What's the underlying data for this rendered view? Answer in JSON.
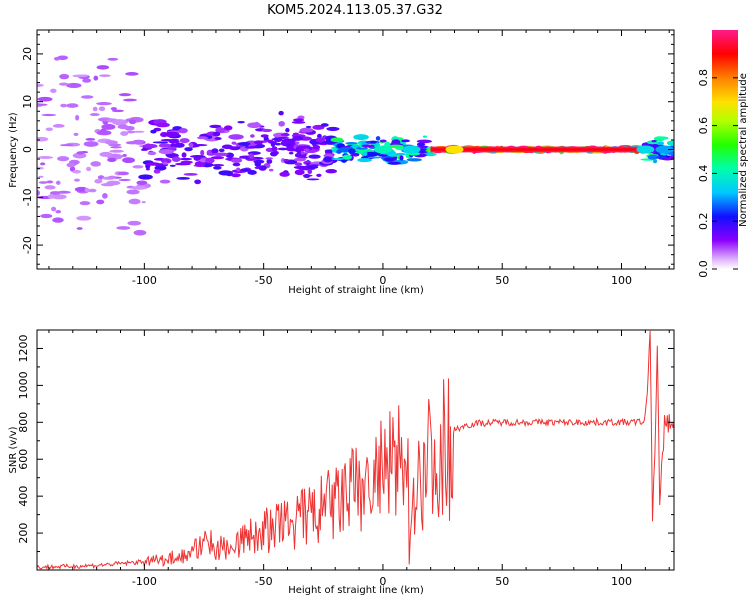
{
  "title": "KOM5.2024.113.05.37.G32",
  "colors": {
    "snr_line": "#ee3333",
    "spectrum_low": "#d9a6f5",
    "spectrum_mid": "#6b00ff",
    "spectrum_peak": "#ff2060"
  },
  "colorbar": {
    "label": "Normalized spectral amplitude",
    "ticks": [
      "0.0",
      "0.2",
      "0.4",
      "0.6",
      "0.8"
    ],
    "tick_values": [
      0.0,
      0.2,
      0.4,
      0.6,
      0.8
    ],
    "range": [
      0,
      1
    ],
    "colormap": "gist_rainbow-like (purple → blue → cyan → green → yellow → red → magenta)"
  },
  "chart_data": [
    {
      "type": "heatmap",
      "title": "KOM5.2024.113.05.37.G32",
      "xlabel": "Height of straight line (km)",
      "ylabel": "Frequency (Hz)",
      "xlim": [
        -145,
        122
      ],
      "ylim": [
        -25,
        25
      ],
      "x_ticks": [
        -100,
        -50,
        0,
        50,
        100
      ],
      "x_tick_labels": [
        "-100",
        "-50",
        "0",
        "50",
        "100"
      ],
      "y_ticks": [
        -20,
        -10,
        0,
        10,
        20
      ],
      "y_tick_labels": [
        "-20",
        "-10",
        "0",
        "10",
        "20"
      ],
      "description_points": [
        {
          "x_range": [
            -145,
            -100
          ],
          "freq_spread": 22,
          "amplitude": 0.05
        },
        {
          "x_range": [
            -100,
            -20
          ],
          "freq_spread": 8,
          "amplitude": 0.15
        },
        {
          "x_range": [
            -20,
            20
          ],
          "freq_spread": 3,
          "amplitude": 0.4
        },
        {
          "x_range": [
            20,
            110
          ],
          "freq_spread": 0.5,
          "amplitude": 0.95
        },
        {
          "x_range": [
            110,
            122
          ],
          "freq_spread": 3,
          "amplitude": 0.4
        }
      ]
    },
    {
      "type": "line",
      "xlabel": "Height of straight line (km)",
      "ylabel": "SNR (v/v)",
      "xlim": [
        -145,
        122
      ],
      "ylim": [
        0,
        1300
      ],
      "x_ticks": [
        -100,
        -50,
        0,
        50,
        100
      ],
      "x_tick_labels": [
        "-100",
        "-50",
        "0",
        "50",
        "100"
      ],
      "y_ticks": [
        200,
        400,
        600,
        800,
        1000,
        1200
      ],
      "y_tick_labels": [
        "200",
        "400",
        "600",
        "800",
        "1000",
        "1200"
      ],
      "series": [
        {
          "x": [
            -145,
            -130,
            -120,
            -110,
            -100,
            -90,
            -80,
            -75,
            -70,
            -60,
            -50,
            -40,
            -30,
            -20,
            -15,
            -10,
            -5,
            0,
            5,
            9,
            10,
            11,
            12,
            15,
            20,
            25,
            30,
            35,
            40,
            50,
            60,
            70,
            80,
            90,
            100,
            105,
            110,
            112,
            113,
            114,
            115,
            116,
            118,
            122
          ],
          "y": [
            15,
            20,
            25,
            35,
            45,
            70,
            100,
            180,
            130,
            170,
            230,
            280,
            330,
            400,
            450,
            480,
            520,
            580,
            610,
            700,
            940,
            80,
            420,
            560,
            680,
            720,
            760,
            785,
            795,
            800,
            800,
            800,
            800,
            800,
            800,
            800,
            805,
            1290,
            320,
            620,
            1200,
            330,
            800,
            800
          ]
        }
      ]
    }
  ]
}
